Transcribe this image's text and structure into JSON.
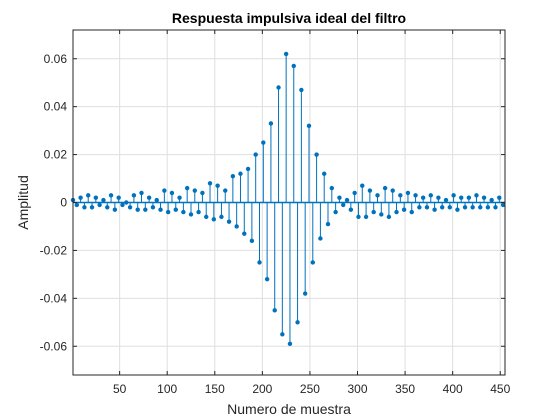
{
  "chart_data": {
    "type": "stem",
    "title": "Respuesta impulsiva ideal del filtro",
    "xlabel": "Numero de muestra",
    "ylabel": "Amplitud",
    "xlim": [
      1,
      455
    ],
    "ylim": [
      -0.072,
      0.072
    ],
    "xticks": [
      50,
      100,
      150,
      200,
      250,
      300,
      350,
      400,
      450
    ],
    "xtick_labels": [
      "50",
      "100",
      "150",
      "200",
      "250",
      "300",
      "350",
      "400",
      "450"
    ],
    "yticks": [
      -0.06,
      -0.04,
      -0.02,
      0,
      0.02,
      0.04,
      0.06
    ],
    "ytick_labels": [
      "-0.06",
      "-0.04",
      "-0.02",
      "0",
      "0.02",
      "0.04",
      "0.06"
    ],
    "grid": true,
    "series_color": "#0072BD",
    "series": [
      {
        "x": [
          1,
          5,
          9,
          13,
          17,
          21,
          25,
          29,
          33,
          37,
          41,
          45,
          49,
          53,
          57,
          61,
          65,
          69,
          73,
          77,
          81,
          85,
          89,
          93,
          97,
          101,
          105,
          109,
          113,
          117,
          121,
          125,
          129,
          133,
          137,
          141,
          145,
          149,
          153,
          157,
          161,
          165,
          169,
          173,
          177,
          181,
          185,
          189,
          193,
          197,
          201,
          205,
          209,
          213,
          217,
          221,
          225,
          229,
          233,
          237,
          241,
          245,
          249,
          253,
          257,
          261,
          265,
          269,
          273,
          277,
          281,
          285,
          289,
          293,
          297,
          301,
          305,
          309,
          313,
          317,
          321,
          325,
          329,
          333,
          337,
          341,
          345,
          349,
          353,
          357,
          361,
          365,
          369,
          373,
          377,
          381,
          385,
          389,
          393,
          397,
          401,
          405,
          409,
          413,
          417,
          421,
          425,
          429,
          433,
          437,
          441,
          445,
          449,
          453
        ],
        "y": [
          0.001,
          -0.001,
          0.002,
          -0.002,
          0.003,
          -0.002,
          0.002,
          -0.001,
          0.001,
          -0.002,
          0.003,
          -0.003,
          0.002,
          -0.001,
          0.0,
          -0.002,
          0.003,
          -0.003,
          0.004,
          -0.003,
          0.002,
          -0.002,
          0.001,
          -0.003,
          0.005,
          -0.004,
          0.004,
          -0.003,
          0.002,
          -0.004,
          0.006,
          -0.005,
          0.005,
          -0.004,
          0.004,
          -0.006,
          0.008,
          -0.007,
          0.007,
          -0.006,
          0.005,
          -0.008,
          0.011,
          -0.01,
          0.012,
          -0.013,
          0.014,
          -0.016,
          0.02,
          -0.025,
          0.025,
          -0.032,
          0.033,
          -0.045,
          0.048,
          -0.055,
          0.062,
          -0.059,
          0.057,
          -0.05,
          0.047,
          -0.038,
          0.032,
          -0.025,
          0.02,
          -0.015,
          0.012,
          -0.009,
          0.006,
          -0.004,
          0.002,
          -0.001,
          0.001,
          -0.003,
          0.004,
          -0.006,
          0.007,
          -0.006,
          0.005,
          -0.004,
          0.003,
          -0.005,
          0.006,
          -0.006,
          0.005,
          -0.004,
          0.003,
          -0.003,
          0.004,
          -0.004,
          0.003,
          -0.002,
          0.002,
          -0.002,
          0.003,
          -0.003,
          0.002,
          -0.002,
          0.001,
          -0.002,
          0.003,
          -0.003,
          0.002,
          -0.002,
          0.002,
          -0.002,
          0.003,
          -0.002,
          0.002,
          -0.002,
          0.001,
          -0.002,
          0.002,
          -0.001
        ]
      }
    ]
  }
}
